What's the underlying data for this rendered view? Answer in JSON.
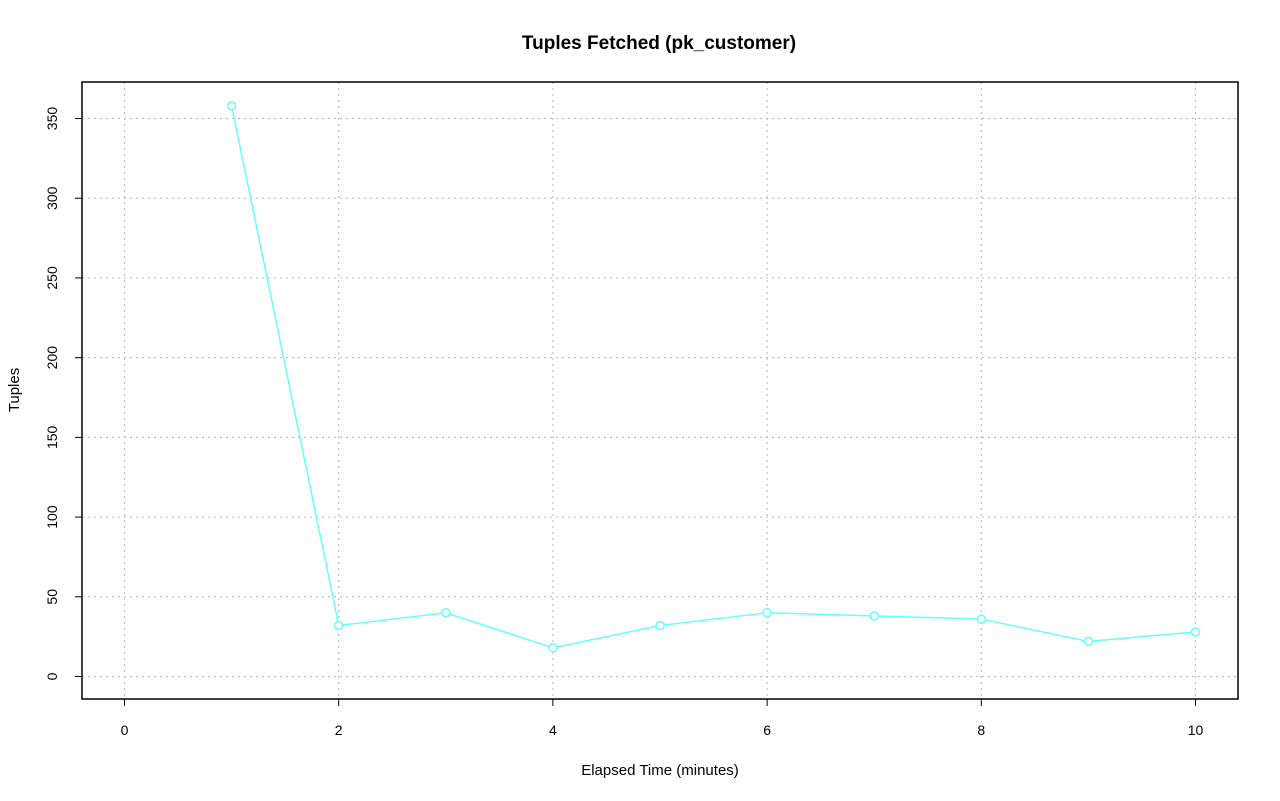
{
  "chart_data": {
    "type": "line",
    "title": "Tuples Fetched (pk_customer)",
    "xlabel": "Elapsed Time (minutes)",
    "ylabel": "Tuples",
    "xlim": [
      0,
      10
    ],
    "ylim": [
      0,
      350
    ],
    "x_ticks": [
      0,
      2,
      4,
      6,
      8,
      10
    ],
    "y_ticks": [
      0,
      50,
      100,
      150,
      200,
      250,
      300,
      350
    ],
    "grid": true,
    "grid_x": [
      0,
      2,
      4,
      6,
      8,
      10
    ],
    "grid_y": [
      0,
      50,
      100,
      150,
      200,
      250,
      300,
      350
    ],
    "series": [
      {
        "x": [
          1,
          2,
          3,
          4,
          5,
          6,
          7,
          8,
          9,
          10
        ],
        "values": [
          358,
          32,
          40,
          18,
          32,
          40,
          38,
          36,
          22,
          28
        ],
        "color": "#66ffff",
        "marker": "open-circle"
      }
    ]
  }
}
